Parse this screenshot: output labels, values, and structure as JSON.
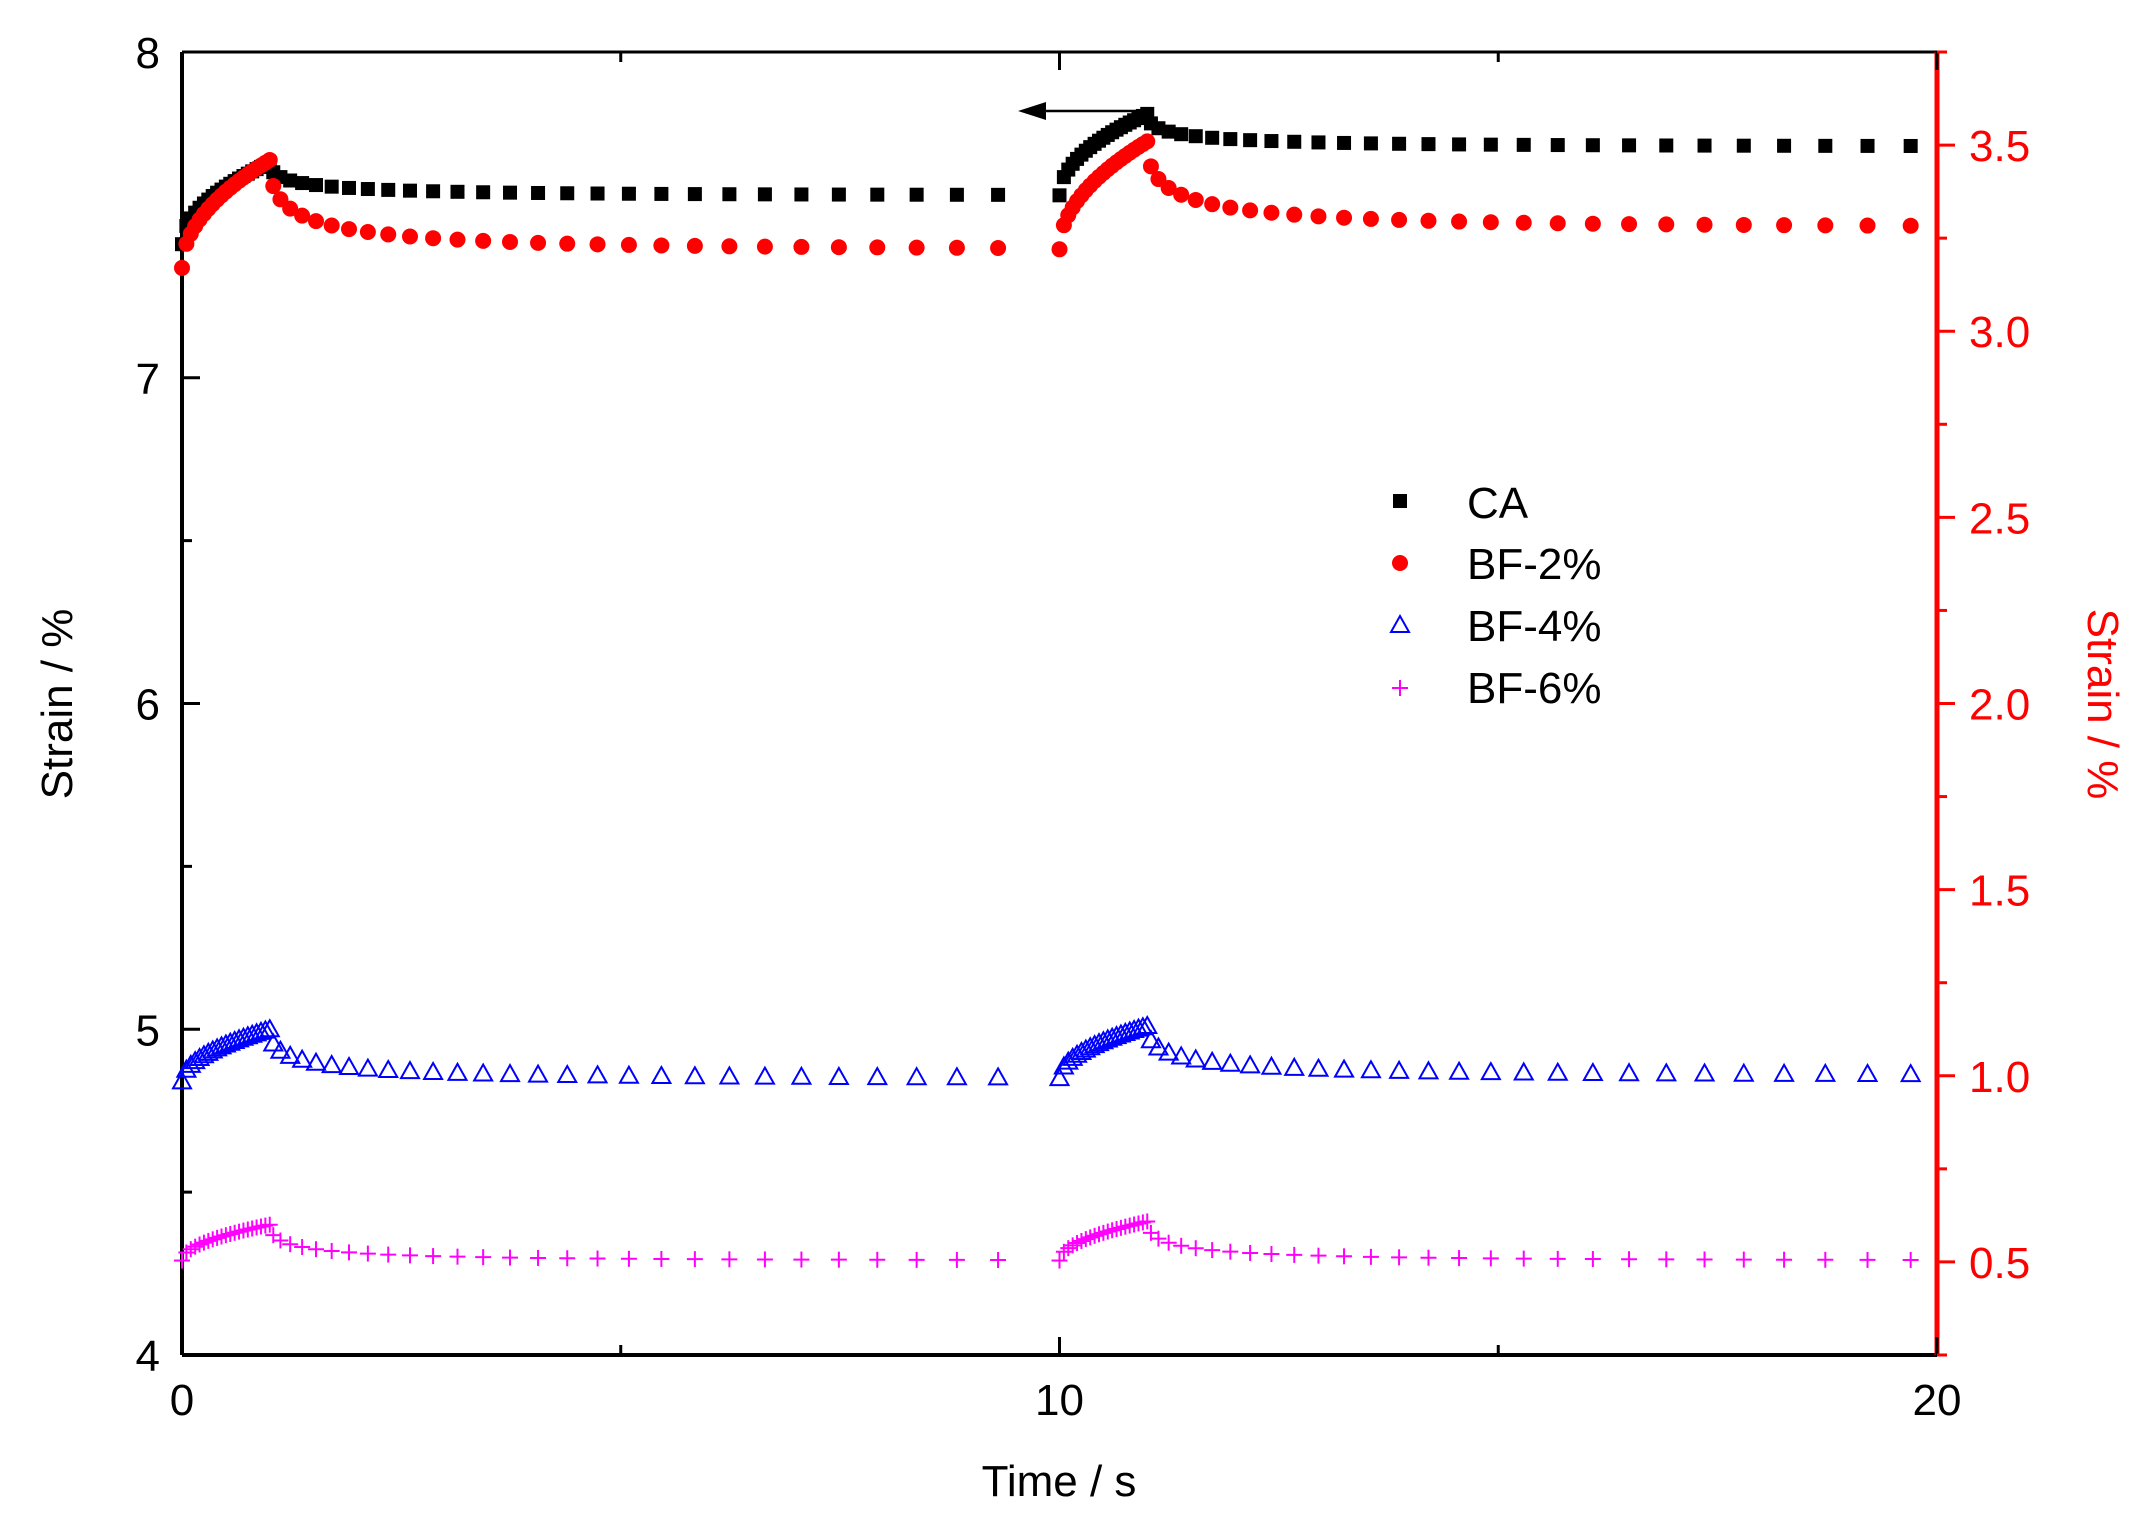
{
  "chart_data": {
    "type": "scatter",
    "xlabel": "Time / s",
    "ylabel_left": "Strain / %",
    "ylabel_right": "Strain / %",
    "xlim": [
      0,
      20
    ],
    "ylim_left": [
      4,
      8
    ],
    "ylim_right": [
      0.25,
      3.75
    ],
    "x_ticks": [
      0,
      10,
      20
    ],
    "x_tick_labels": [
      "0",
      "10",
      "20"
    ],
    "y_left_ticks": [
      4,
      5,
      6,
      7,
      8
    ],
    "y_left_tick_labels": [
      "4",
      "5",
      "6",
      "7",
      "8"
    ],
    "y_right_ticks": [
      0.5,
      1.0,
      1.5,
      2.0,
      2.5,
      3.0,
      3.5
    ],
    "y_right_tick_labels": [
      "0.5",
      "1.0",
      "1.5",
      "2.0",
      "2.5",
      "3.0",
      "3.5"
    ],
    "colors": {
      "CA": "#000000",
      "BF-2%": "#ff0000",
      "BF-4%": "#0000ff",
      "BF-6%": "#ff00ff",
      "right_axis": "#ff0000"
    },
    "legend": [
      "CA",
      "BF-2%",
      "BF-4%",
      "BF-6%"
    ],
    "legend_position": "center-right",
    "annotation": "arrow pointing to left axis near CA curve",
    "series": [
      {
        "name": "CA",
        "axis": "left",
        "marker": "square",
        "cycles": [
          {
            "t0": 0,
            "rise_from": 7.41,
            "peak": 7.66,
            "end": 7.56,
            "steps_rise": 20,
            "steps_decay": 28,
            "t_end": 9.3
          },
          {
            "t0": 10,
            "rise_from": 7.56,
            "peak": 7.81,
            "end": 7.71,
            "steps_rise": 20,
            "steps_decay": 28,
            "t_end": 19.7
          }
        ]
      },
      {
        "name": "BF-2%",
        "axis": "right",
        "marker": "circle",
        "cycles": [
          {
            "t0": 0,
            "rise_from": 3.17,
            "peak": 3.46,
            "end": 3.22,
            "steps_rise": 20,
            "steps_decay": 28,
            "t_end": 9.3
          },
          {
            "t0": 10,
            "rise_from": 3.22,
            "peak": 3.51,
            "end": 3.28,
            "steps_rise": 20,
            "steps_decay": 28,
            "t_end": 19.7
          }
        ]
      },
      {
        "name": "BF-4%",
        "axis": "left",
        "marker": "triangle",
        "cycles": [
          {
            "t0": 0,
            "rise_from": 4.84,
            "peak": 5.0,
            "end": 4.85,
            "steps_rise": 20,
            "steps_decay": 28,
            "t_end": 9.3
          },
          {
            "t0": 10,
            "rise_from": 4.85,
            "peak": 5.01,
            "end": 4.86,
            "steps_rise": 20,
            "steps_decay": 28,
            "t_end": 19.7
          }
        ]
      },
      {
        "name": "BF-6%",
        "axis": "left",
        "marker": "plus",
        "cycles": [
          {
            "t0": 0,
            "rise_from": 4.29,
            "peak": 4.4,
            "end": 4.29,
            "steps_rise": 20,
            "steps_decay": 28,
            "t_end": 9.3
          },
          {
            "t0": 10,
            "rise_from": 4.29,
            "peak": 4.41,
            "end": 4.29,
            "steps_rise": 20,
            "steps_decay": 28,
            "t_end": 19.7
          }
        ]
      }
    ]
  }
}
